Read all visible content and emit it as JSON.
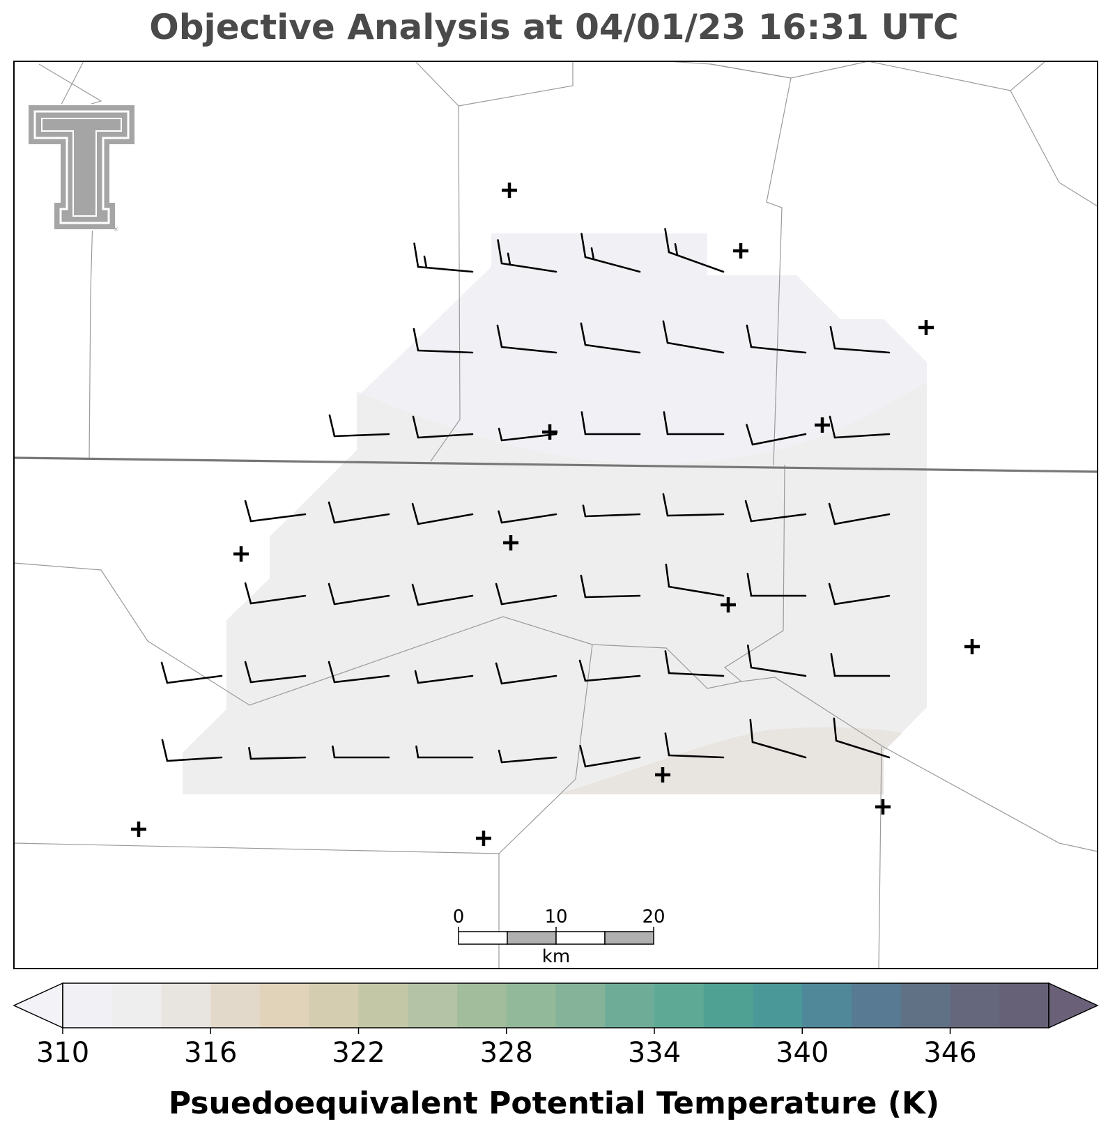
{
  "title": "Objective Analysis at 04/01/23 16:31 UTC",
  "colorbar": {
    "label": "Psuedoequivalent Potential Temperature (K)",
    "min": 310,
    "max": 350,
    "step": 2,
    "ticks": [
      "310",
      "316",
      "322",
      "328",
      "334",
      "340",
      "346"
    ],
    "extend": "both",
    "colors": [
      "#f1f1f5",
      "#efeeef",
      "#e8e4df",
      "#e3d9cb",
      "#e1d2ba",
      "#d5cdaf",
      "#c3c7a6",
      "#b4c3a5",
      "#a2bd9c",
      "#93b99b",
      "#84b39a",
      "#6fac97",
      "#5ea896",
      "#4fa194",
      "#4b9898",
      "#50889a",
      "#587a92",
      "#607186",
      "#65687d",
      "#676178"
    ],
    "under_color": "#f2f2f7",
    "over_color": "#6a6078"
  },
  "scale_bar": {
    "labels": [
      "0",
      "10",
      "20"
    ],
    "unit": "km"
  },
  "logo": "texas-tech-double-t-logo"
}
